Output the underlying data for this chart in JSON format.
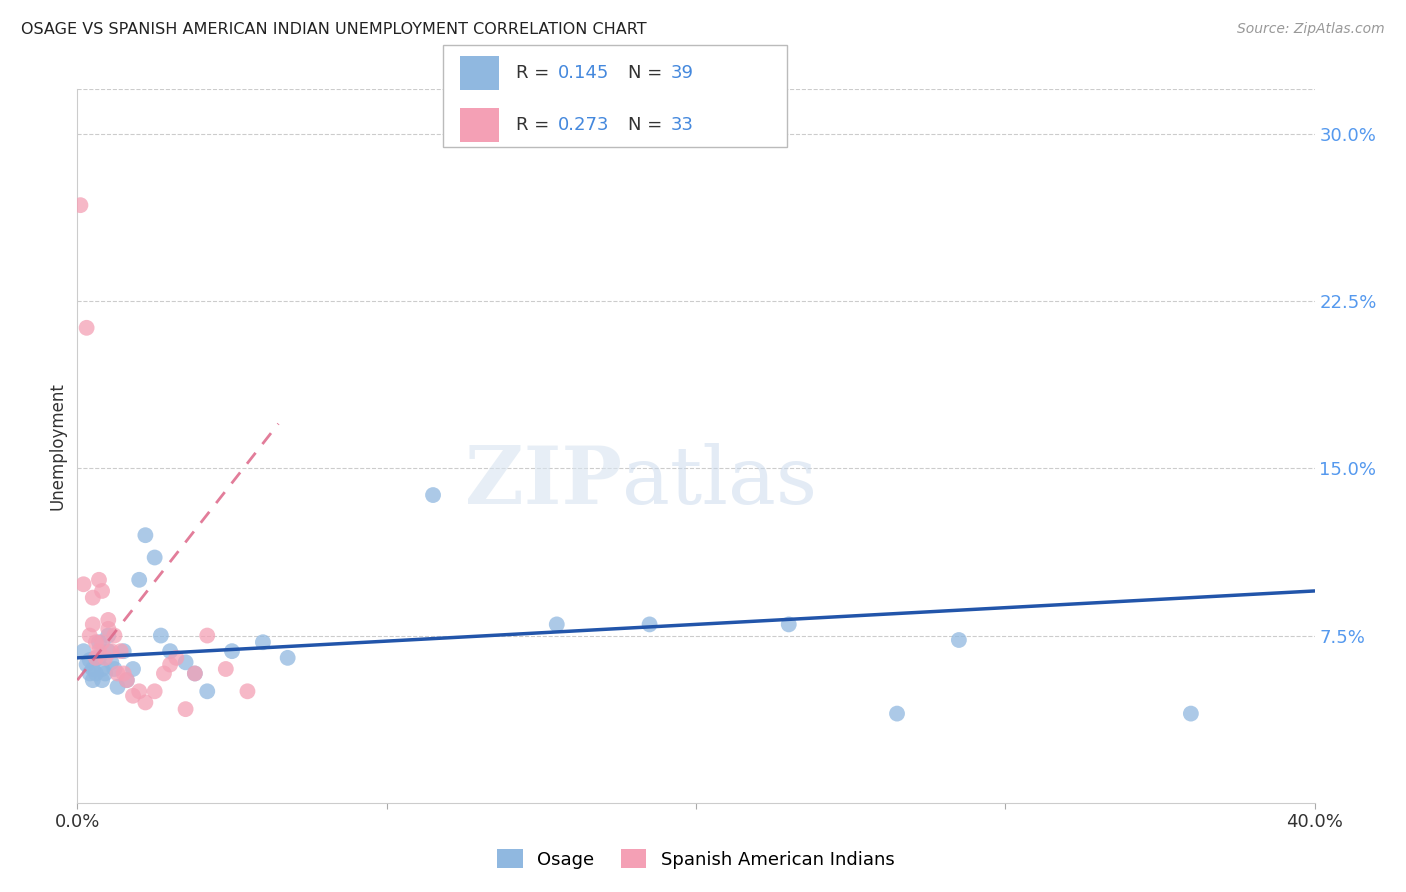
{
  "title": "OSAGE VS SPANISH AMERICAN INDIAN UNEMPLOYMENT CORRELATION CHART",
  "source": "Source: ZipAtlas.com",
  "ylabel": "Unemployment",
  "xlim": [
    0.0,
    0.4
  ],
  "ylim": [
    0.0,
    0.32
  ],
  "yticks": [
    0.075,
    0.15,
    0.225,
    0.3
  ],
  "ytick_labels": [
    "7.5%",
    "15.0%",
    "22.5%",
    "30.0%"
  ],
  "xticks": [
    0.0,
    0.1,
    0.2,
    0.3,
    0.4
  ],
  "xtick_labels": [
    "0.0%",
    "",
    "",
    "",
    "40.0%"
  ],
  "background_color": "#ffffff",
  "watermark_zip": "ZIP",
  "watermark_atlas": "atlas",
  "osage_color": "#90b8e0",
  "spanish_color": "#f4a0b5",
  "osage_line_color": "#2255aa",
  "spanish_line_color": "#dd6688",
  "osage_points": [
    [
      0.002,
      0.068
    ],
    [
      0.003,
      0.062
    ],
    [
      0.004,
      0.058
    ],
    [
      0.004,
      0.064
    ],
    [
      0.005,
      0.06
    ],
    [
      0.005,
      0.055
    ],
    [
      0.006,
      0.065
    ],
    [
      0.006,
      0.058
    ],
    [
      0.007,
      0.072
    ],
    [
      0.007,
      0.065
    ],
    [
      0.008,
      0.06
    ],
    [
      0.008,
      0.055
    ],
    [
      0.009,
      0.058
    ],
    [
      0.01,
      0.068
    ],
    [
      0.01,
      0.075
    ],
    [
      0.011,
      0.063
    ],
    [
      0.012,
      0.06
    ],
    [
      0.013,
      0.052
    ],
    [
      0.015,
      0.068
    ],
    [
      0.016,
      0.055
    ],
    [
      0.018,
      0.06
    ],
    [
      0.02,
      0.1
    ],
    [
      0.022,
      0.12
    ],
    [
      0.025,
      0.11
    ],
    [
      0.027,
      0.075
    ],
    [
      0.03,
      0.068
    ],
    [
      0.035,
      0.063
    ],
    [
      0.038,
      0.058
    ],
    [
      0.042,
      0.05
    ],
    [
      0.05,
      0.068
    ],
    [
      0.06,
      0.072
    ],
    [
      0.068,
      0.065
    ],
    [
      0.115,
      0.138
    ],
    [
      0.155,
      0.08
    ],
    [
      0.185,
      0.08
    ],
    [
      0.23,
      0.08
    ],
    [
      0.265,
      0.04
    ],
    [
      0.285,
      0.073
    ],
    [
      0.36,
      0.04
    ]
  ],
  "spanish_points": [
    [
      0.001,
      0.268
    ],
    [
      0.003,
      0.213
    ],
    [
      0.002,
      0.098
    ],
    [
      0.004,
      0.075
    ],
    [
      0.005,
      0.08
    ],
    [
      0.005,
      0.092
    ],
    [
      0.006,
      0.072
    ],
    [
      0.006,
      0.065
    ],
    [
      0.007,
      0.068
    ],
    [
      0.007,
      0.1
    ],
    [
      0.008,
      0.072
    ],
    [
      0.008,
      0.095
    ],
    [
      0.009,
      0.065
    ],
    [
      0.01,
      0.082
    ],
    [
      0.01,
      0.078
    ],
    [
      0.011,
      0.068
    ],
    [
      0.012,
      0.075
    ],
    [
      0.013,
      0.058
    ],
    [
      0.014,
      0.068
    ],
    [
      0.015,
      0.058
    ],
    [
      0.016,
      0.055
    ],
    [
      0.018,
      0.048
    ],
    [
      0.02,
      0.05
    ],
    [
      0.022,
      0.045
    ],
    [
      0.025,
      0.05
    ],
    [
      0.028,
      0.058
    ],
    [
      0.03,
      0.062
    ],
    [
      0.032,
      0.065
    ],
    [
      0.035,
      0.042
    ],
    [
      0.038,
      0.058
    ],
    [
      0.042,
      0.075
    ],
    [
      0.048,
      0.06
    ],
    [
      0.055,
      0.05
    ]
  ],
  "osage_line_x": [
    0.0,
    0.4
  ],
  "osage_line_y": [
    0.065,
    0.095
  ],
  "spanish_line_x": [
    0.0,
    0.065
  ],
  "spanish_line_y": [
    0.055,
    0.17
  ]
}
